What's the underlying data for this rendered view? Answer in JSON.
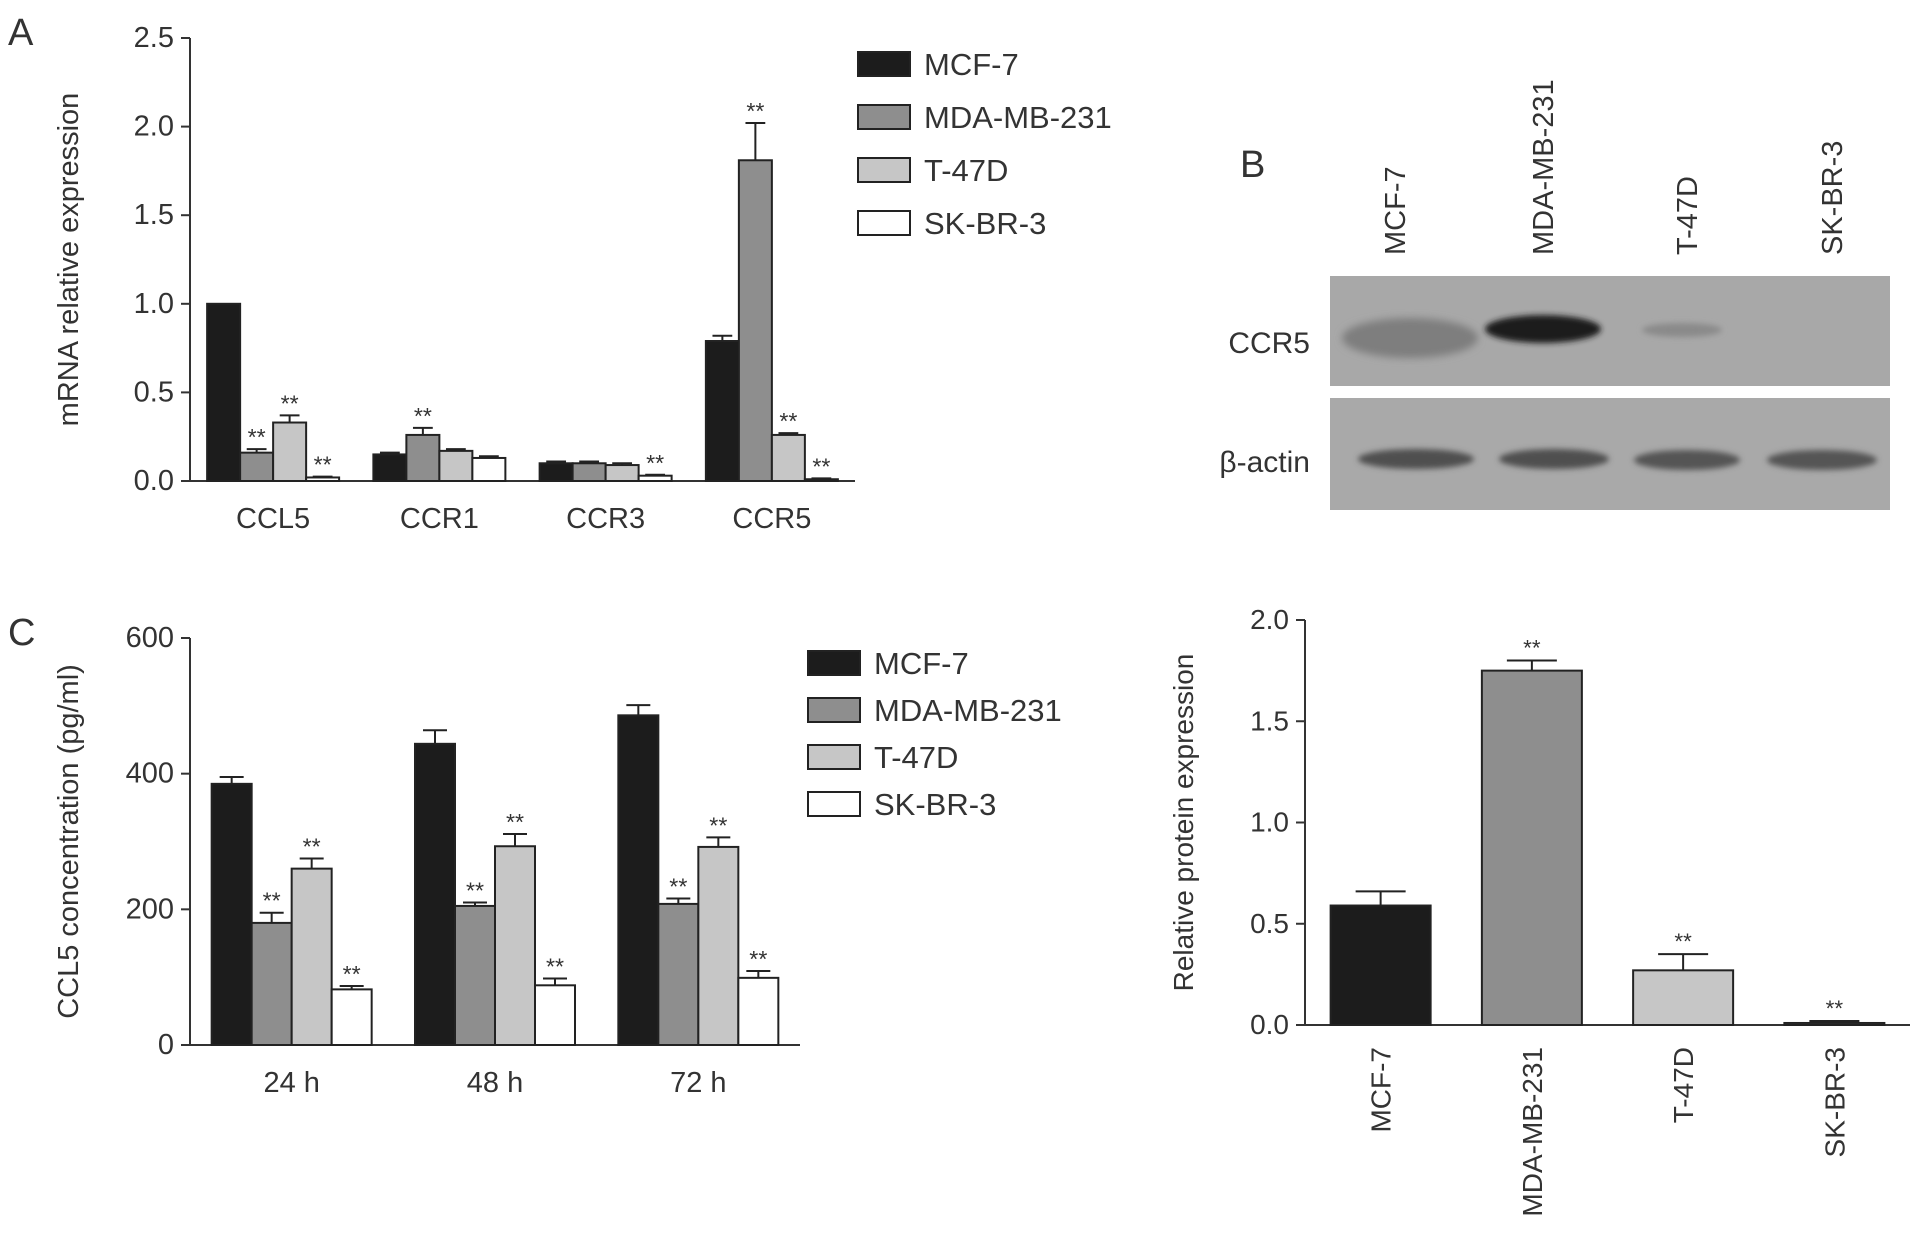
{
  "colors": {
    "MCF-7": "#1c1c1c",
    "MDA-MB-231": "#8e8e8e",
    "T-47D": "#c6c6c6",
    "SK-BR-3": "#ffffff"
  },
  "chart_data": [
    {
      "panel": "A",
      "type": "bar",
      "ylabel": "mRNA relative expression",
      "xlabel": "",
      "ylim": [
        0,
        2.5
      ],
      "yticks": [
        "0.0",
        "0.5",
        "1.0",
        "1.5",
        "2.0",
        "2.5"
      ],
      "legend_position": "top-right",
      "categories": [
        "CCL5",
        "CCR1",
        "CCR3",
        "CCR5"
      ],
      "series": [
        {
          "name": "MCF-7",
          "values": [
            1.0,
            0.15,
            0.1,
            0.79
          ],
          "errors": [
            0,
            0.01,
            0.01,
            0.03
          ],
          "marks": [
            "",
            "",
            "",
            ""
          ]
        },
        {
          "name": "MDA-MB-231",
          "values": [
            0.16,
            0.26,
            0.1,
            1.81
          ],
          "errors": [
            0.02,
            0.04,
            0.01,
            0.21
          ],
          "marks": [
            "**",
            "**",
            "",
            "**"
          ]
        },
        {
          "name": "T-47D",
          "values": [
            0.33,
            0.17,
            0.09,
            0.26
          ],
          "errors": [
            0.04,
            0.01,
            0.01,
            0.01
          ],
          "marks": [
            "**",
            "",
            "",
            "**"
          ]
        },
        {
          "name": "SK-BR-3",
          "values": [
            0.02,
            0.13,
            0.03,
            0.01
          ],
          "errors": [
            0.005,
            0.01,
            0.005,
            0.005
          ],
          "marks": [
            "**",
            "",
            "**",
            "**"
          ]
        }
      ]
    },
    {
      "panel": "B",
      "type": "bar",
      "ylabel": "Relative protein expression",
      "xlabel": "",
      "ylim": [
        0,
        2.0
      ],
      "yticks": [
        "0.0",
        "0.5",
        "1.0",
        "1.5",
        "2.0"
      ],
      "categories": [
        "MCF-7",
        "MDA-MB-231",
        "T-47D",
        "SK-BR-3"
      ],
      "values": [
        0.59,
        1.75,
        0.27,
        0.01
      ],
      "errors": [
        0.07,
        0.05,
        0.08,
        0.01
      ],
      "marks": [
        "",
        "**",
        "**",
        "**"
      ]
    },
    {
      "panel": "C",
      "type": "bar",
      "ylabel": "CCL5 concentration (pg/ml)",
      "xlabel": "",
      "ylim": [
        0,
        600
      ],
      "yticks": [
        "0",
        "200",
        "400",
        "600"
      ],
      "legend_position": "top-right",
      "categories": [
        "24 h",
        "48 h",
        "72 h"
      ],
      "series": [
        {
          "name": "MCF-7",
          "values": [
            385,
            444,
            486
          ],
          "errors": [
            10,
            20,
            15
          ],
          "marks": [
            "",
            "",
            ""
          ]
        },
        {
          "name": "MDA-MB-231",
          "values": [
            180,
            205,
            208
          ],
          "errors": [
            15,
            5,
            8
          ],
          "marks": [
            "**",
            "**",
            "**"
          ]
        },
        {
          "name": "T-47D",
          "values": [
            260,
            293,
            292
          ],
          "errors": [
            15,
            18,
            14
          ],
          "marks": [
            "**",
            "**",
            "**"
          ]
        },
        {
          "name": "SK-BR-3",
          "values": [
            82,
            88,
            99
          ],
          "errors": [
            5,
            10,
            10
          ],
          "marks": [
            "**",
            "**",
            "**"
          ]
        }
      ]
    }
  ],
  "blot": {
    "panel_label": "B",
    "lanes": [
      "MCF-7",
      "MDA-MB-231",
      "T-47D",
      "SK-BR-3"
    ],
    "rows": [
      "CCR5",
      "β-actin"
    ]
  }
}
